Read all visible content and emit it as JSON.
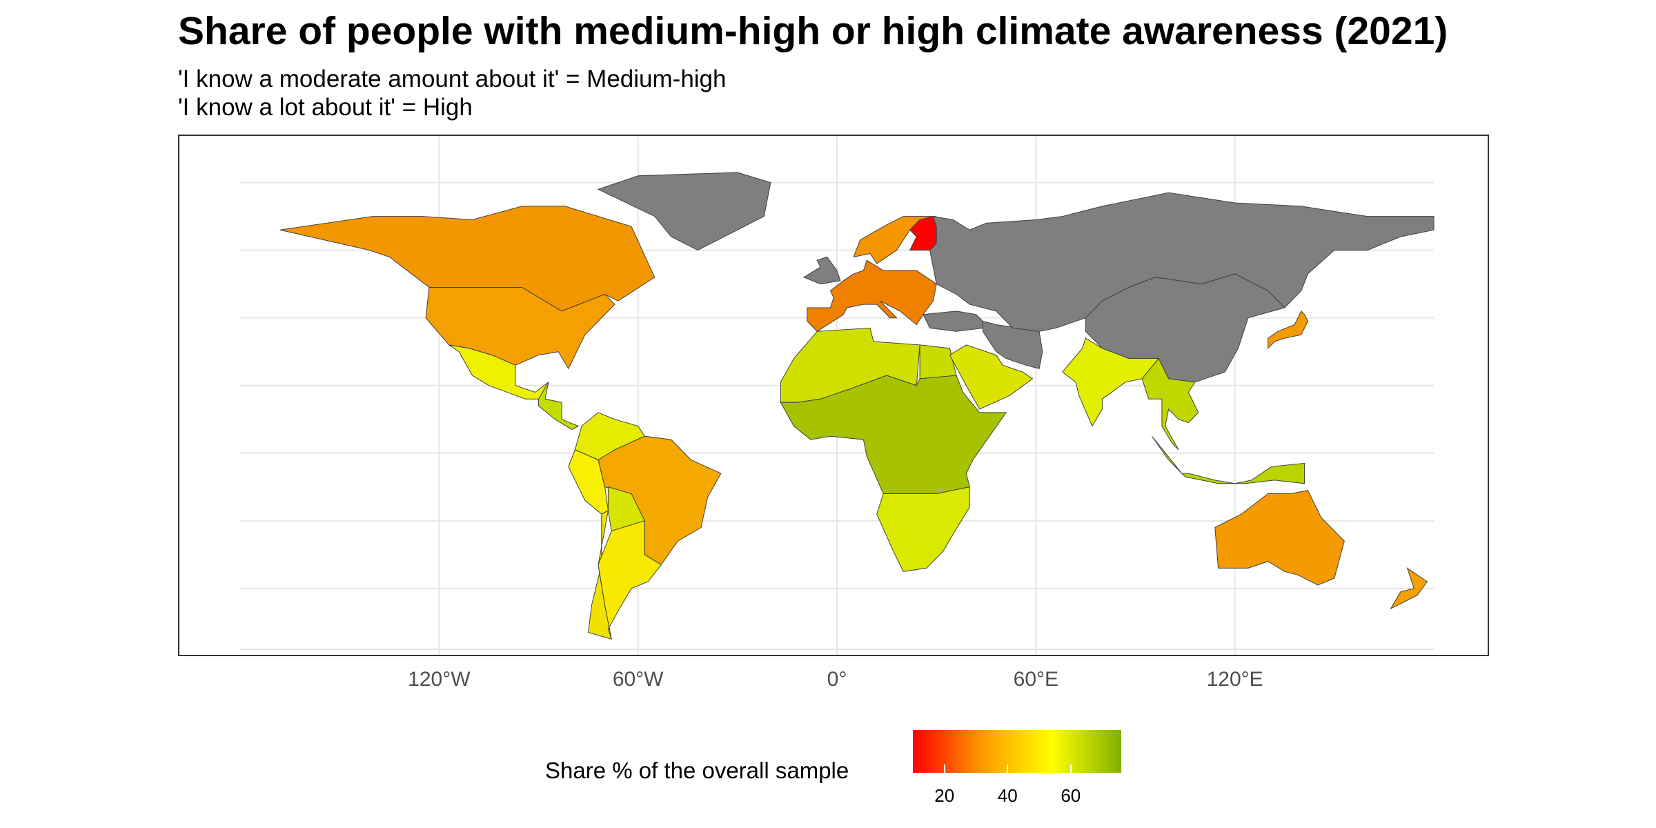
{
  "title": "Share of people with medium-high or high climate awareness (2021)",
  "subtitle_line1": "'I know a moderate amount about it' = Medium-high",
  "subtitle_line2": "'I know a lot about it' = High",
  "map": {
    "projection": "equirectangular",
    "lon_range": [
      -180,
      180
    ],
    "lat_range": [
      -58,
      84
    ],
    "grid": true,
    "no_data_color": "#7f7f7f",
    "border_color": "#404040",
    "x_tick_labels": [
      "120°W",
      "60°W",
      "0°",
      "60°E",
      "120°E"
    ],
    "x_tick_values": [
      -120,
      -60,
      0,
      60,
      120
    ]
  },
  "legend": {
    "title": "Share % of the overall sample",
    "position": "bottom",
    "tick_labels": [
      "20",
      "40",
      "60"
    ],
    "tick_values": [
      20,
      40,
      60
    ],
    "range": [
      10,
      76
    ],
    "colors": [
      "#ff0000",
      "#ff9900",
      "#ffff00",
      "#80b000"
    ]
  },
  "regions": [
    {
      "name": "Canada",
      "color": "#f39700"
    },
    {
      "name": "United States",
      "color": "#f5a000"
    },
    {
      "name": "Mexico",
      "color": "#eef000"
    },
    {
      "name": "Central America",
      "color": "#c4dd00"
    },
    {
      "name": "Colombia",
      "color": "#e5ec00"
    },
    {
      "name": "Brazil",
      "color": "#f5a800"
    },
    {
      "name": "Peru",
      "color": "#f7f000"
    },
    {
      "name": "Bolivia",
      "color": "#d7e400"
    },
    {
      "name": "Argentina",
      "color": "#f7ea00"
    },
    {
      "name": "Chile",
      "color": "#f2e000"
    },
    {
      "name": "Greenland",
      "color": "#7f7f7f"
    },
    {
      "name": "Northwest Africa",
      "color": "#cfe000"
    },
    {
      "name": "Central Africa",
      "color": "#a7c200"
    },
    {
      "name": "Southern Africa",
      "color": "#d9ea00"
    },
    {
      "name": "Egypt",
      "color": "#c8dc00"
    },
    {
      "name": "Saudi Arabia",
      "color": "#dbe400"
    },
    {
      "name": "Western Europe",
      "color": "#f08000"
    },
    {
      "name": "Scandinavia",
      "color": "#f59500"
    },
    {
      "name": "Finland",
      "color": "#ff0000"
    },
    {
      "name": "Russia and Central Asia",
      "color": "#7f7f7f"
    },
    {
      "name": "Iran",
      "color": "#7f7f7f"
    },
    {
      "name": "India",
      "color": "#e3ef00"
    },
    {
      "name": "China",
      "color": "#7f7f7f"
    },
    {
      "name": "Southeast Asia",
      "color": "#c0d800"
    },
    {
      "name": "Japan",
      "color": "#f59a00"
    },
    {
      "name": "Indonesia",
      "color": "#b9d400"
    },
    {
      "name": "Australia",
      "color": "#f59a00"
    },
    {
      "name": "New Zealand",
      "color": "#f5a000"
    }
  ]
}
